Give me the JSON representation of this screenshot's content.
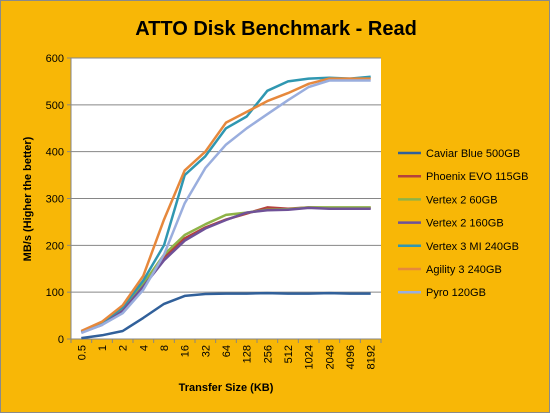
{
  "chart_data": {
    "type": "line",
    "title": "ATTO Disk Benchmark - Read",
    "xlabel": "Transfer Size (KB)",
    "ylabel": "MB/s (Higher the better)",
    "ylim": [
      0,
      600
    ],
    "yticks": [
      0,
      100,
      200,
      300,
      400,
      500,
      600
    ],
    "grid": "horizontal",
    "legend": "right",
    "categories": [
      "0.5",
      "1",
      "2",
      "4",
      "8",
      "16",
      "32",
      "64",
      "128",
      "256",
      "512",
      "1024",
      "2048",
      "4096",
      "8192"
    ],
    "series": [
      {
        "name": "Caviar Blue 500GB",
        "color": "#31609a",
        "values": [
          2,
          8,
          17,
          45,
          75,
          92,
          96,
          97,
          97,
          98,
          97,
          97,
          98,
          97,
          97
        ]
      },
      {
        "name": "Phoenix EVO 115GB",
        "color": "#b5413c",
        "values": [
          15,
          32,
          62,
          115,
          175,
          215,
          238,
          255,
          268,
          281,
          278,
          281,
          280,
          280,
          280
        ]
      },
      {
        "name": "Vertex 2 60GB",
        "color": "#8fb347",
        "values": [
          15,
          32,
          65,
          118,
          180,
          222,
          245,
          265,
          270,
          276,
          277,
          281,
          281,
          281,
          281
        ]
      },
      {
        "name": "Vertex 2 160GB",
        "color": "#6f5198",
        "values": [
          14,
          30,
          60,
          112,
          168,
          210,
          236,
          254,
          270,
          275,
          276,
          280,
          278,
          278,
          278
        ]
      },
      {
        "name": "Vertex 3 MI 240GB",
        "color": "#2f97b1",
        "values": [
          16,
          35,
          68,
          125,
          200,
          350,
          390,
          450,
          475,
          530,
          550,
          556,
          558,
          556,
          560
        ]
      },
      {
        "name": "Agility 3 240GB",
        "color": "#e6883c",
        "values": [
          17,
          37,
          72,
          135,
          255,
          360,
          400,
          462,
          485,
          508,
          525,
          545,
          556,
          556,
          556
        ]
      },
      {
        "name": "Pyro 120GB",
        "color": "#9aaede",
        "values": [
          13,
          30,
          55,
          105,
          180,
          290,
          365,
          415,
          450,
          480,
          510,
          538,
          552,
          552,
          552
        ]
      }
    ]
  }
}
